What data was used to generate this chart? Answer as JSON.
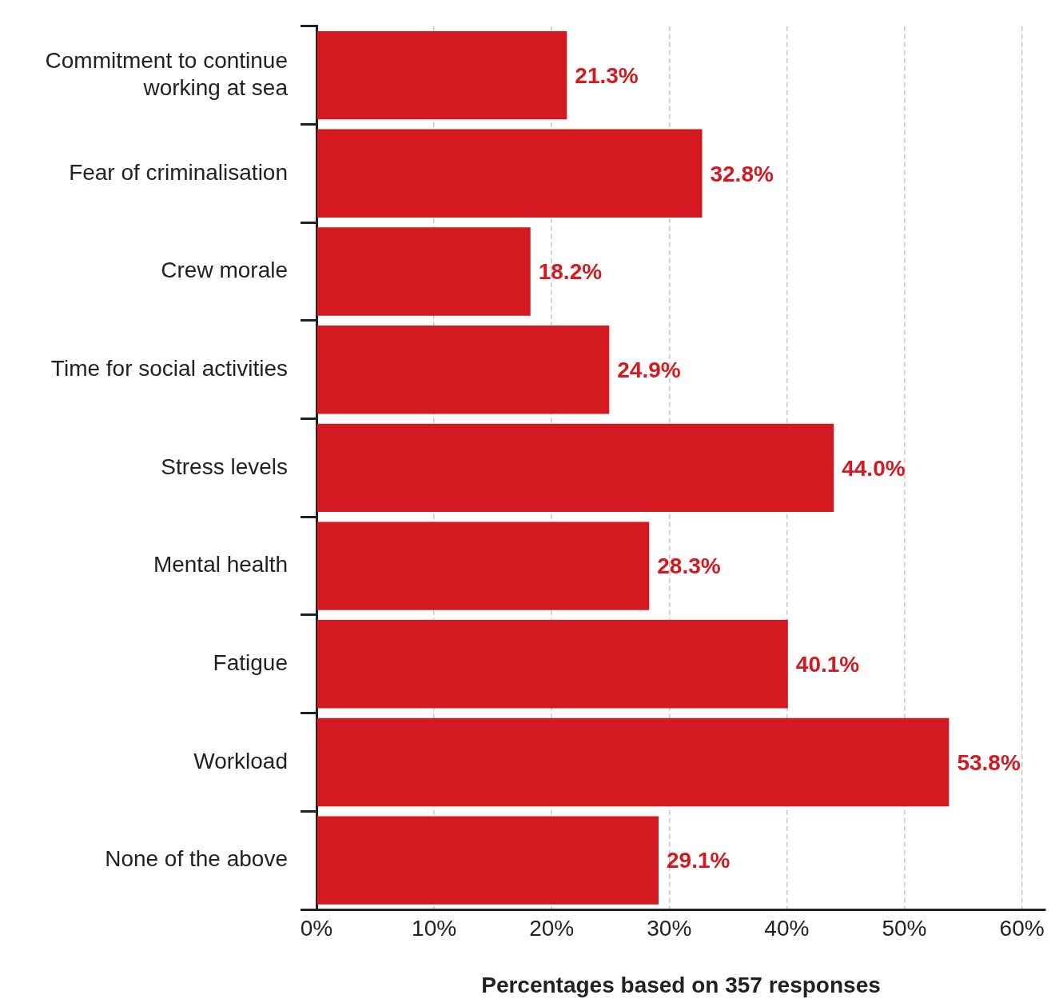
{
  "chart_data": {
    "type": "bar",
    "orientation": "horizontal",
    "xlabel": "Percentages based on 357 responses",
    "categories": [
      "Commitment to continue working at sea",
      "Fear of criminalisation",
      "Crew morale",
      "Time for social activities",
      "Stress levels",
      "Mental health",
      "Fatigue",
      "Workload",
      "None of the above"
    ],
    "values": [
      21.3,
      32.8,
      18.2,
      24.9,
      44.0,
      28.3,
      40.1,
      53.8,
      29.1
    ],
    "value_labels": [
      "21.3%",
      "32.8%",
      "18.2%",
      "24.9%",
      "44.0%",
      "28.3%",
      "40.1%",
      "53.8%",
      "29.1%"
    ],
    "color": "#d51920",
    "xlim": [
      0,
      62
    ],
    "xticks": [
      {
        "value": 0,
        "label": "0%"
      },
      {
        "value": 10,
        "label": "10%"
      },
      {
        "value": 20,
        "label": "20%"
      },
      {
        "value": 30,
        "label": "30%"
      },
      {
        "value": 40,
        "label": "40%"
      },
      {
        "value": 50,
        "label": "50%"
      },
      {
        "value": 60,
        "label": "60%"
      }
    ],
    "grid": "x",
    "legend": false
  }
}
